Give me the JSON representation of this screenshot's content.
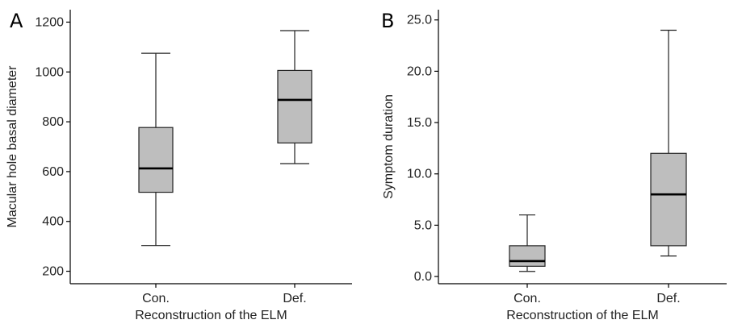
{
  "chart_data": [
    {
      "panel": "A",
      "type": "box",
      "xlabel": "Reconstruction of the ELM",
      "ylabel": "Macular hole basal diameter",
      "ylim": [
        150,
        1250
      ],
      "yticks": [
        200,
        400,
        600,
        800,
        1000,
        1200
      ],
      "ytick_labels": [
        "200",
        "400",
        "600",
        "800",
        "1000",
        "1200"
      ],
      "categories": [
        "Con.",
        "Def."
      ],
      "boxes": [
        {
          "category": "Con.",
          "min": 303,
          "q1": 517,
          "median": 613,
          "q3": 777,
          "max": 1075
        },
        {
          "category": "Def.",
          "min": 632,
          "q1": 715,
          "median": 888,
          "q3": 1006,
          "max": 1166
        }
      ],
      "grid": false
    },
    {
      "panel": "B",
      "type": "box",
      "xlabel": "Reconstruction of the ELM",
      "ylabel": "Symptom duration",
      "ylim": [
        -0.7,
        26
      ],
      "yticks": [
        0,
        5,
        10,
        15,
        20,
        25
      ],
      "ytick_labels": [
        "0.0",
        "5.0",
        "10.0",
        "15.0",
        "20.0",
        "25.0"
      ],
      "categories": [
        "Con.",
        "Def."
      ],
      "boxes": [
        {
          "category": "Con.",
          "min": 0.5,
          "q1": 1.0,
          "median": 1.5,
          "q3": 3.0,
          "max": 6.0
        },
        {
          "category": "Def.",
          "min": 2.0,
          "q1": 3.0,
          "median": 8.0,
          "q3": 12.0,
          "max": 24.0
        }
      ],
      "grid": false
    }
  ]
}
